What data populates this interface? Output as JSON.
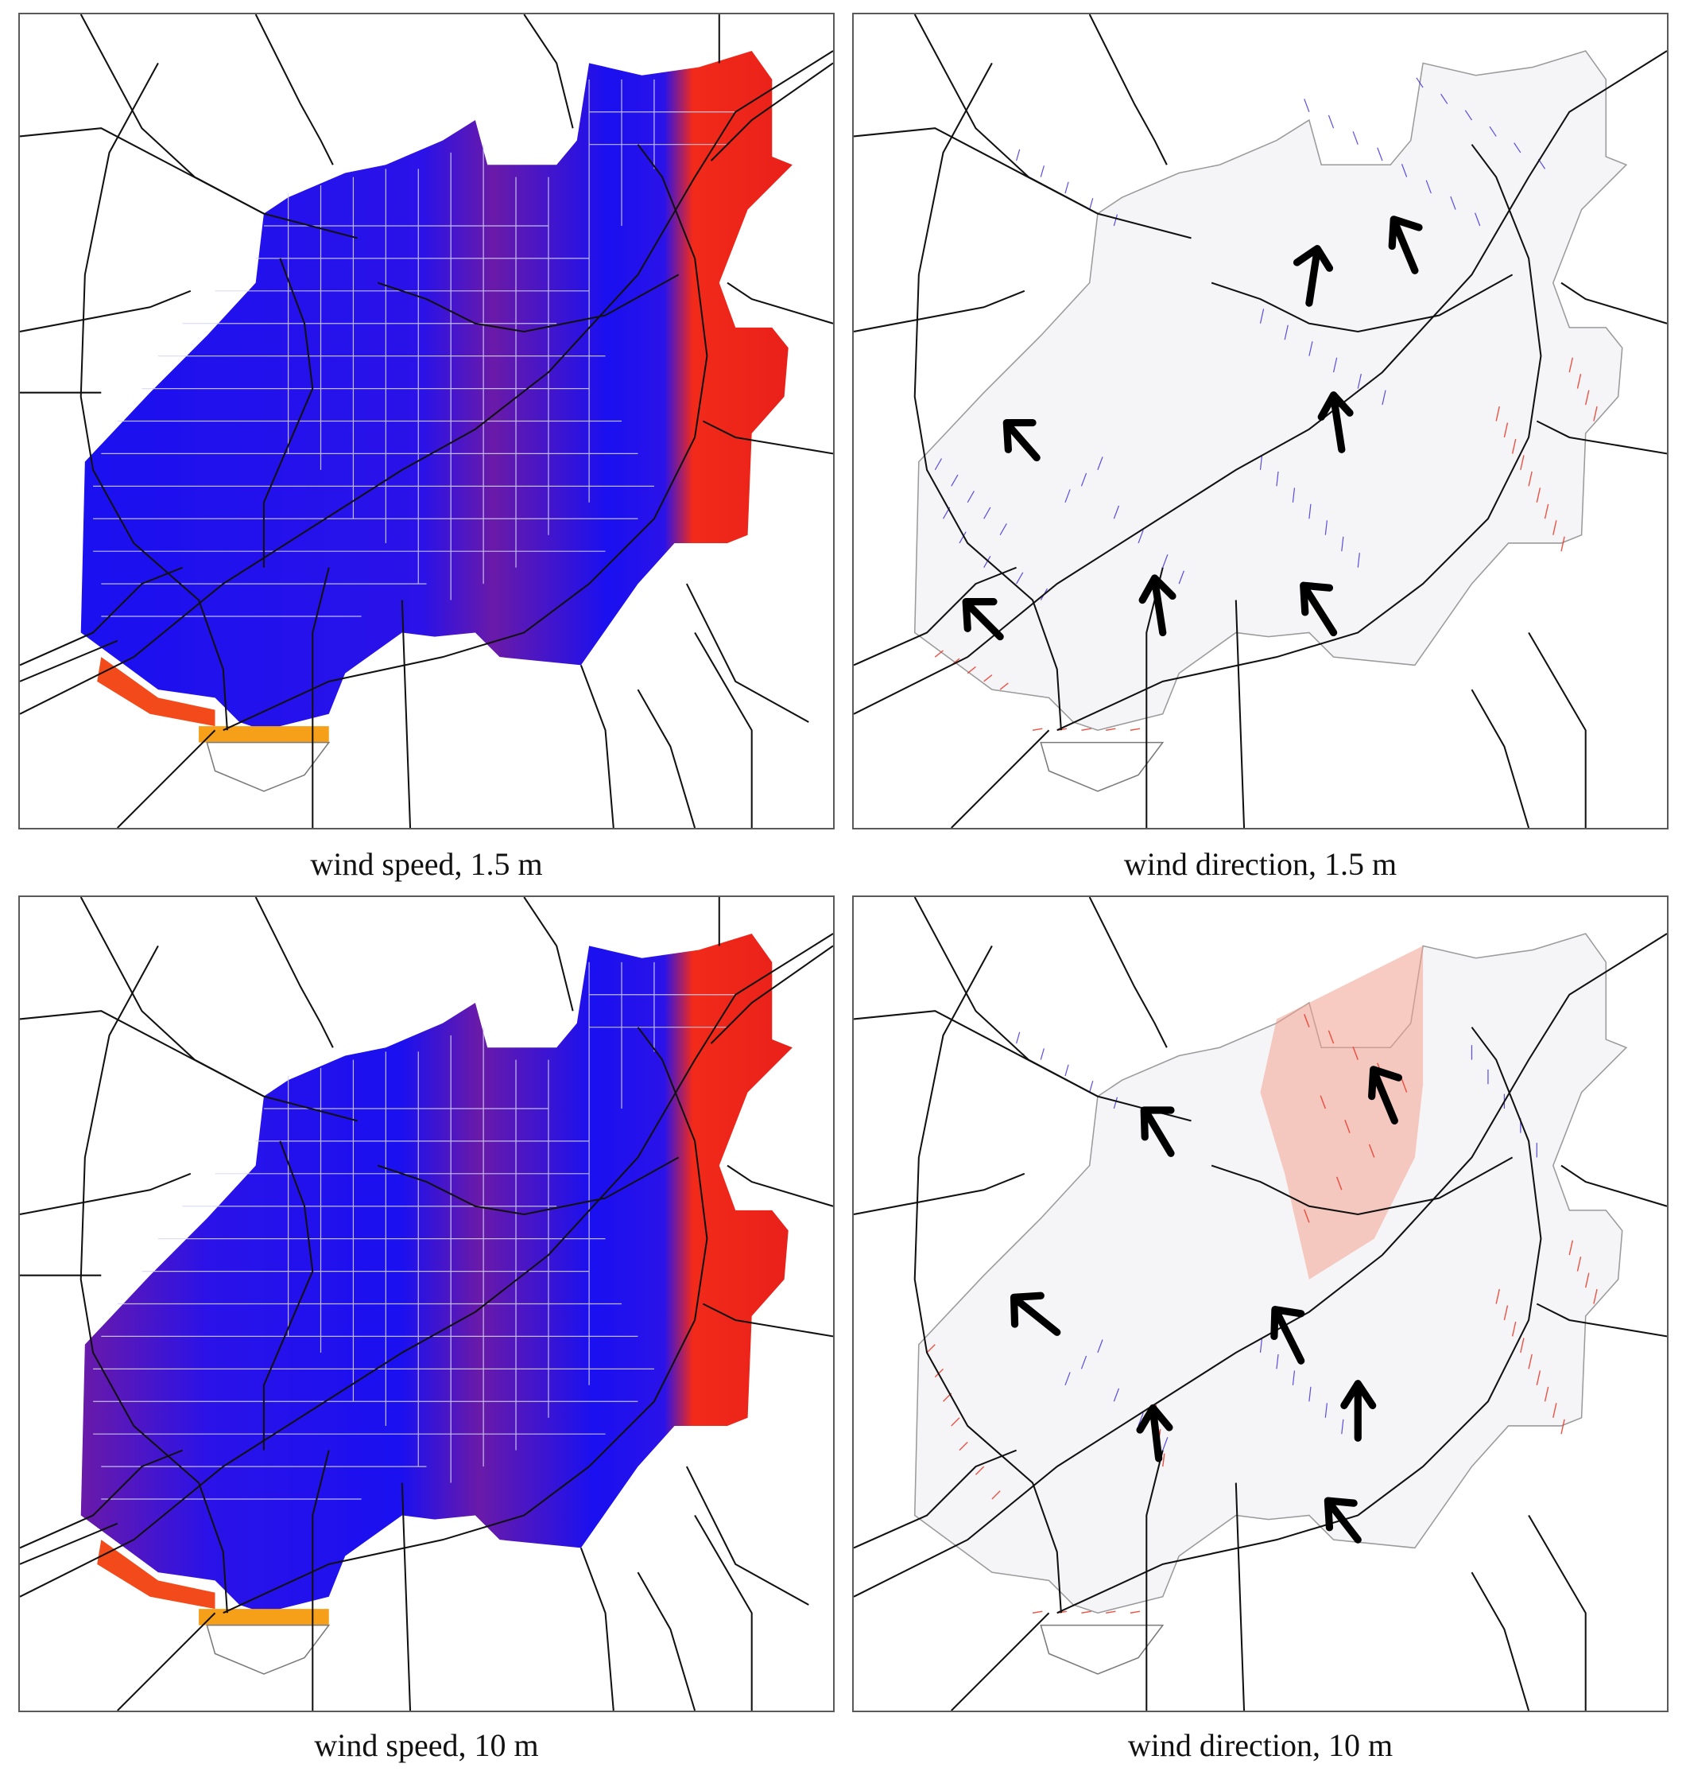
{
  "figure": {
    "panels": [
      {
        "id": "speed_1_5",
        "kind": "speed",
        "caption": "wind speed, 1.5 m"
      },
      {
        "id": "direction_1_5",
        "kind": "direction",
        "caption": "wind direction, 1.5 m"
      },
      {
        "id": "speed_10",
        "kind": "speed",
        "caption": "wind speed, 10 m"
      },
      {
        "id": "direction_10",
        "kind": "direction",
        "caption": "wind direction, 10 m"
      }
    ],
    "colors": {
      "low_speed": "#1a10f0",
      "mid_speed": "#6a1aa8",
      "high_speed": "#f22a1a",
      "peak_speed": "#f7c21a",
      "roads": "#111111",
      "streets": "#d8d8f2",
      "border": "#5a5a5a"
    },
    "icons": [
      "prevailing-wind-arrow-icon"
    ]
  }
}
